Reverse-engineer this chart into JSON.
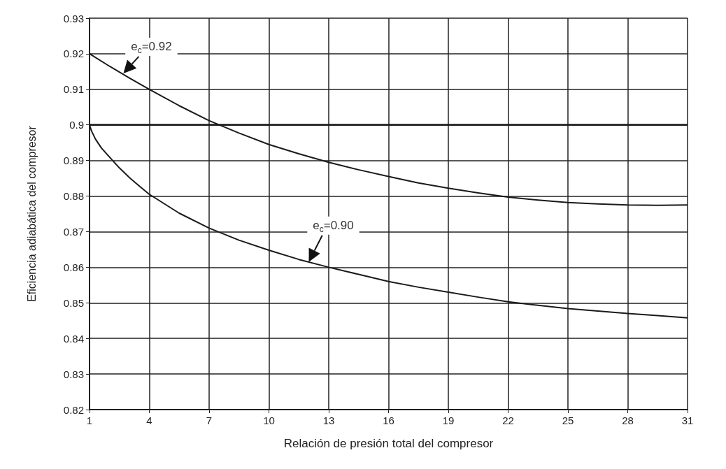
{
  "chart_data": {
    "type": "line",
    "xlabel": "Relación de presión total del compresor",
    "ylabel": "Eficiencia adiabática del compresor",
    "xlim": [
      1,
      31
    ],
    "xticks": [
      1,
      4,
      7,
      10,
      13,
      16,
      19,
      22,
      25,
      28,
      31
    ],
    "ylim": [
      0.82,
      0.93
    ],
    "yticks": [
      0.82,
      0.83,
      0.84,
      0.85,
      0.86,
      0.87,
      0.88,
      0.89,
      0.9,
      0.91,
      0.92,
      0.93
    ],
    "grid": true,
    "marker": "none",
    "line_style": "solid",
    "series": [
      {
        "color": "#1a1a1a",
        "x": [
          1,
          2,
          3,
          4,
          5.5,
          7,
          8.5,
          10,
          11.5,
          13,
          14.5,
          16,
          17.5,
          19,
          20.5,
          22,
          23.5,
          25,
          26.5,
          28,
          29.5,
          31
        ],
        "values": [
          0.92,
          0.9165,
          0.9132,
          0.91,
          0.9054,
          0.9012,
          0.8977,
          0.8945,
          0.8919,
          0.8895,
          0.8874,
          0.8855,
          0.8837,
          0.8822,
          0.8809,
          0.8797,
          0.8789,
          0.8782,
          0.8778,
          0.8775,
          0.8774,
          0.8775
        ]
      },
      {
        "color": "#1a1a1a",
        "x": [
          1,
          1.1,
          1.3,
          1.6,
          2,
          2.5,
          3,
          3.5,
          4,
          5.5,
          7,
          8.5,
          10,
          11.5,
          13,
          14.5,
          16,
          17.5,
          19,
          20.5,
          22,
          23.5,
          25,
          26.5,
          28,
          29.5,
          31
        ],
        "values": [
          0.9,
          0.8983,
          0.896,
          0.8935,
          0.891,
          0.8879,
          0.8852,
          0.8828,
          0.8805,
          0.8752,
          0.871,
          0.8676,
          0.8648,
          0.8622,
          0.86,
          0.858,
          0.856,
          0.8544,
          0.853,
          0.8516,
          0.8503,
          0.8493,
          0.8484,
          0.8477,
          0.847,
          0.8464,
          0.8458
        ]
      }
    ],
    "ref_lines": [
      {
        "axis": "y",
        "value": 0.9,
        "color": "#1a1a1a"
      }
    ],
    "annotations": [
      {
        "text": "e$_{c}$=0.92",
        "x": 2.7,
        "y": 0.9145
      },
      {
        "text": "e$_{c}$=0.90",
        "x": 12,
        "y": 0.8615
      }
    ]
  }
}
